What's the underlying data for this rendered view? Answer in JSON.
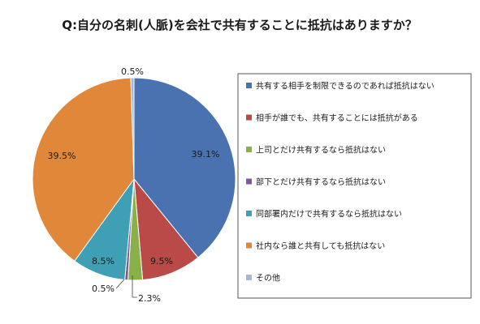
{
  "chart_data": {
    "type": "pie",
    "title": "Q:自分の名刺(人脈)を会社で共有することに抵抗はありますか？",
    "categories": [
      "共有する相手を制限できるのであれば抵抗はない",
      "相手が誰でも、共有することには抵抗がある",
      "上司とだけ共有するなら抵抗はない",
      "部下とだけ共有するなら抵抗はない",
      "同部署内だけで共有するなら抵抗はない",
      "社内なら誰と共有しても抵抗はない",
      "その他"
    ],
    "values": [
      39.1,
      9.5,
      2.3,
      0.5,
      8.5,
      39.5,
      0.5
    ],
    "data_labels": [
      "39.1%",
      "9.5%",
      "2.3%",
      "0.5%",
      "8.5%",
      "39.5%",
      "0.5%"
    ],
    "colors": [
      "#4a72b0",
      "#b94a48",
      "#8ab04a",
      "#7a5a9e",
      "#3f9fb5",
      "#e0873a",
      "#a4b8da"
    ],
    "legend_position": "right",
    "start_angle": "12 o'clock",
    "direction": "clockwise"
  }
}
